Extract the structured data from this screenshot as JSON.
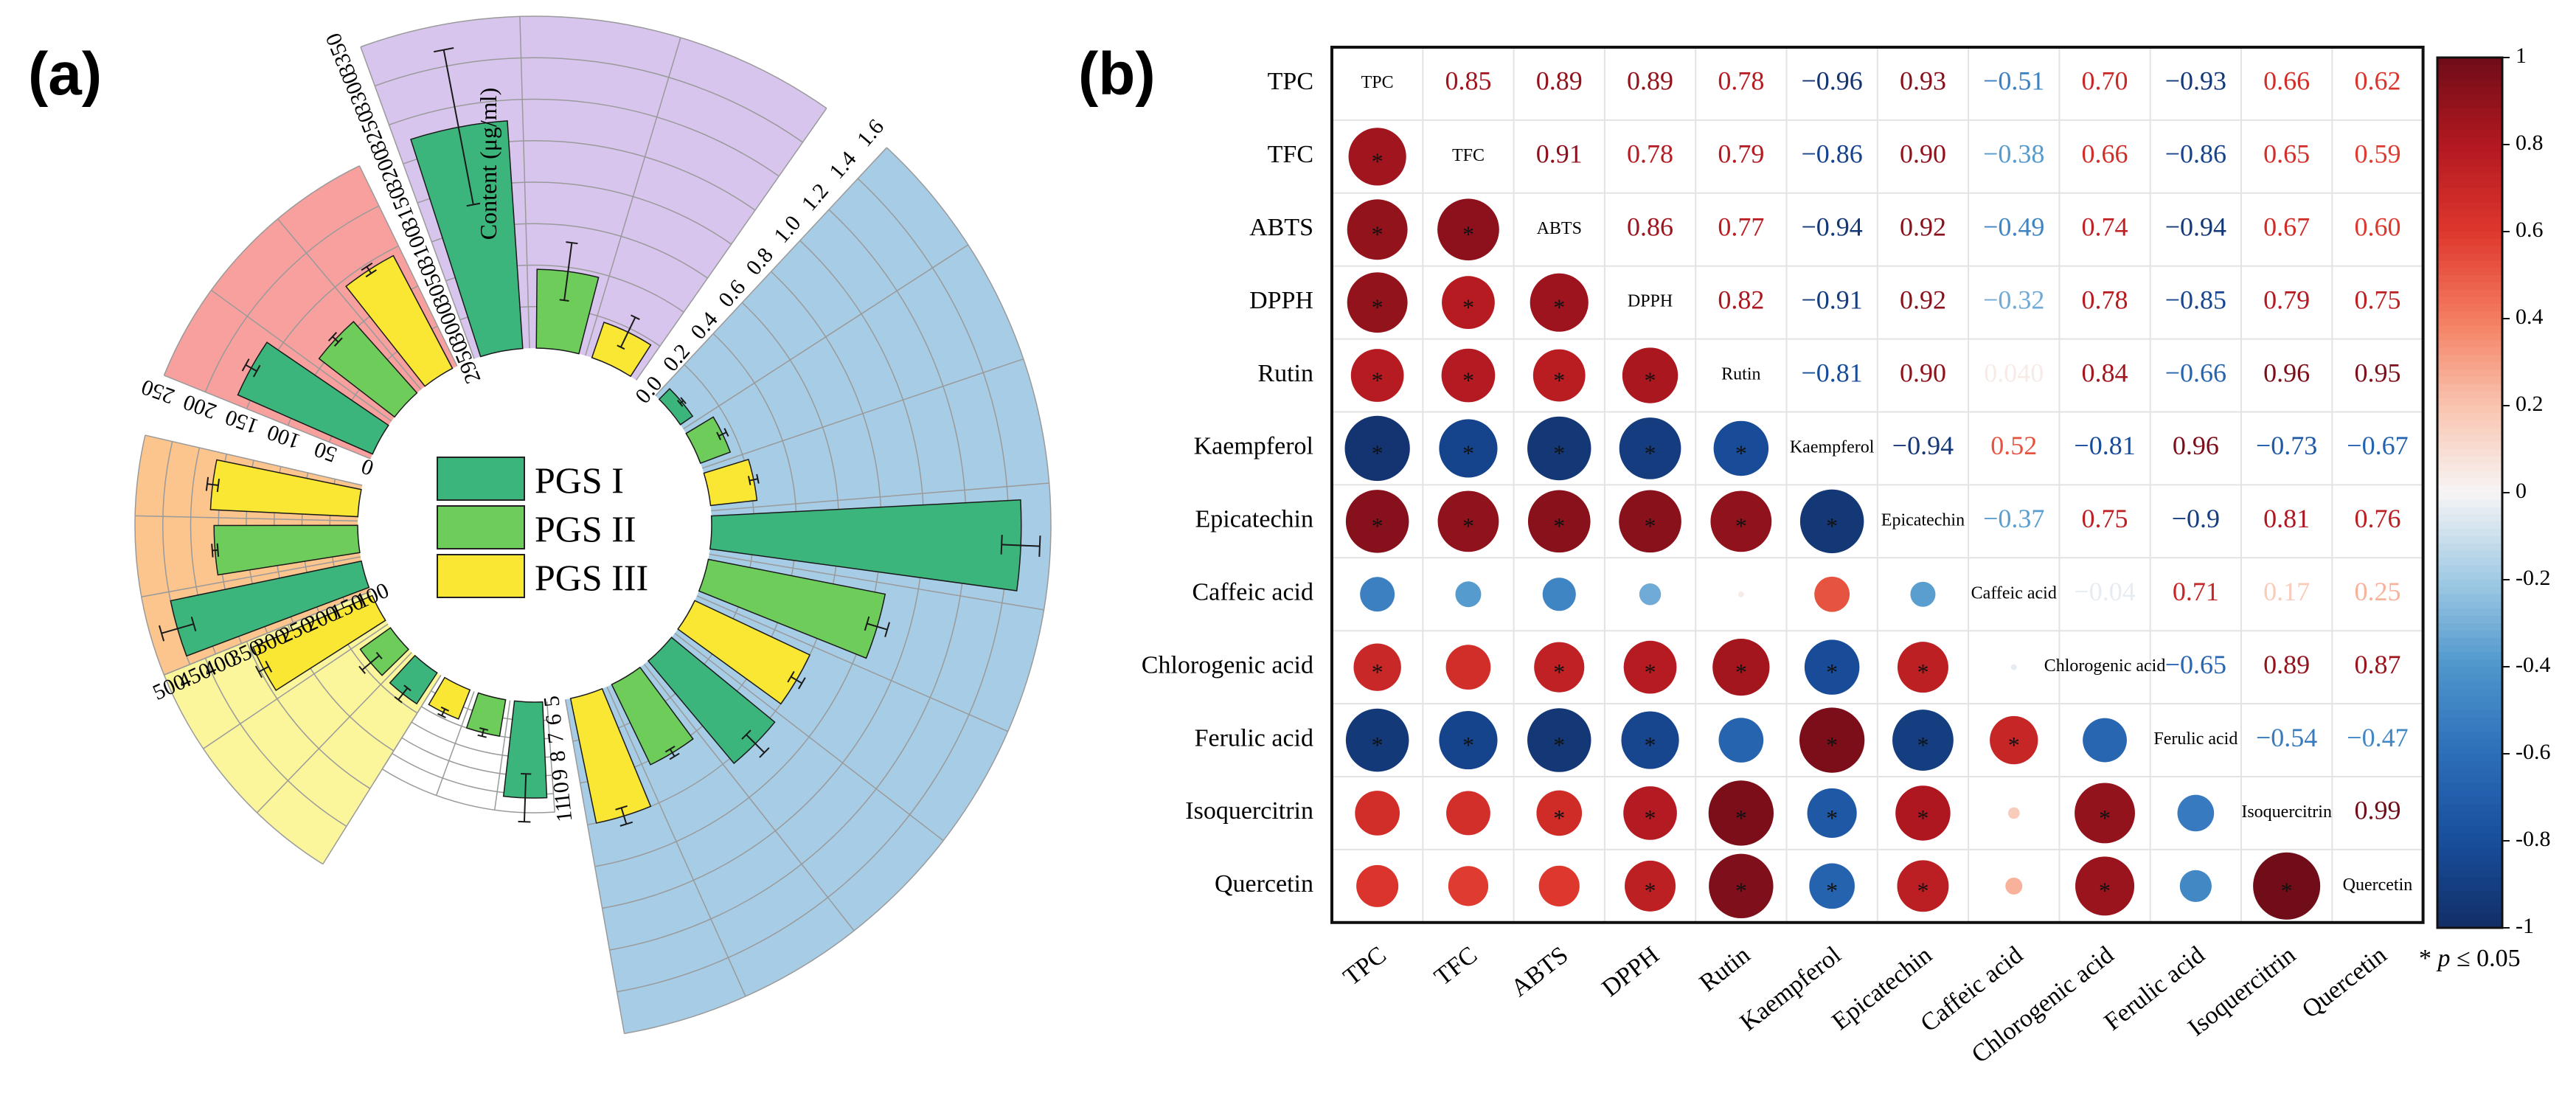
{
  "panel_a_label": "(a)",
  "panel_b_label": "(b)",
  "chart_data": [
    {
      "type": "bar",
      "subtype": "circular-grouped-bar",
      "panel": "(a)",
      "series_names": [
        "PGS I",
        "PGS II",
        "PGS III"
      ],
      "series_colors": [
        "#3bb57b",
        "#6dcc5a",
        "#f9e733"
      ],
      "legend": {
        "items": [
          {
            "label": "PGS I",
            "color": "#3bb57b"
          },
          {
            "label": "PGS II",
            "color": "#6dcc5a"
          },
          {
            "label": "PGS III",
            "color": "#f9e733"
          }
        ],
        "placement": "center"
      },
      "sectors": [
        {
          "name": "green-sector",
          "bg": "#ffffff",
          "range": [
            5,
            11
          ],
          "tick_labels": [
            "5",
            "6",
            "7",
            "8",
            "9",
            "10",
            "11"
          ],
          "values": [
            10.2,
            7.0,
            6.7
          ],
          "errors": [
            1.3,
            0.2,
            0.2
          ]
        },
        {
          "name": "yellow-sector",
          "bg": "#fbf69c",
          "range": [
            0,
            60
          ],
          "tick_labels": [],
          "values": [
            10,
            10,
            35
          ],
          "errors": [
            2,
            3,
            1.5
          ]
        },
        {
          "name": "orange-sector",
          "bg": "#fcc58d",
          "range": [
            100,
            500
          ],
          "tick_labels": [
            "100",
            "150",
            "200",
            "250",
            "300",
            "350",
            "400",
            "450",
            "500"
          ],
          "values": [
            450,
            358,
            365
          ],
          "errors": [
            30,
            5,
            10
          ]
        },
        {
          "name": "pink-sector",
          "bg": "#f7a09e",
          "range": [
            0,
            280
          ],
          "tick_labels": [
            "0",
            "50",
            "100",
            "150",
            "200",
            "250"
          ],
          "values": [
            185,
            120,
            160
          ],
          "errors": [
            8,
            5,
            5
          ]
        },
        {
          "name": "purple-sector",
          "bg": "#d8c5ee",
          "range": [
            2950,
            3350
          ],
          "tick_labels": [
            "2950",
            "3000",
            "3050",
            "3100",
            "3150",
            "3200",
            "3250",
            "3300",
            "3350"
          ],
          "axis_title": "Content (μg/ml)",
          "values": [
            3225,
            3045,
            2995
          ],
          "errors": [
            95,
            35,
            20
          ]
        },
        {
          "name": "blue-sector",
          "bg": "#a7cde6",
          "range": [
            0,
            1.6
          ],
          "tick_labels": [
            "0.0",
            "0.2",
            "0.4",
            "0.6",
            "0.8",
            "1.0",
            "1.2",
            "1.4",
            "1.6"
          ],
          "values": [
            0.07,
            0.15,
            0.22,
            1.46,
            0.85,
            0.6,
            0.63,
            0.42,
            0.6
          ],
          "errors": [
            0.01,
            0.02,
            0.02,
            0.09,
            0.05,
            0.03,
            0.06,
            0.02,
            0.04
          ]
        }
      ]
    },
    {
      "type": "heatmap",
      "subtype": "correlation-matrix",
      "panel": "(b)",
      "variables": [
        "TPC",
        "TFC",
        "ABTS",
        "DPPH",
        "Rutin",
        "Kaempferol",
        "Epicatechin",
        "Caffeic acid",
        "Chlorogenic acid",
        "Ferulic acid",
        "Isoquercitrin",
        "Quercetin"
      ],
      "matrix": [
        [
          1,
          0.85,
          0.89,
          0.89,
          0.78,
          -0.96,
          0.93,
          -0.51,
          0.7,
          -0.93,
          0.66,
          0.62
        ],
        [
          0.85,
          1,
          0.91,
          0.78,
          0.79,
          -0.86,
          0.9,
          -0.38,
          0.66,
          -0.86,
          0.65,
          0.59
        ],
        [
          0.89,
          0.91,
          1,
          0.86,
          0.77,
          -0.94,
          0.92,
          -0.49,
          0.74,
          -0.94,
          0.67,
          0.6
        ],
        [
          0.89,
          0.78,
          0.86,
          1,
          0.82,
          -0.91,
          0.92,
          -0.32,
          0.78,
          -0.85,
          0.79,
          0.75
        ],
        [
          0.78,
          0.79,
          0.77,
          0.82,
          1,
          -0.81,
          0.9,
          0.04,
          0.84,
          -0.66,
          0.96,
          0.95
        ],
        [
          -0.96,
          -0.86,
          -0.94,
          -0.91,
          -0.81,
          1,
          -0.94,
          0.52,
          -0.81,
          0.96,
          -0.73,
          -0.67
        ],
        [
          0.93,
          0.9,
          0.92,
          0.92,
          0.9,
          -0.94,
          1,
          -0.37,
          0.75,
          -0.9,
          0.81,
          0.76
        ],
        [
          -0.51,
          -0.38,
          -0.49,
          -0.32,
          0.04,
          0.52,
          -0.37,
          1,
          -0.04,
          0.71,
          0.17,
          0.25
        ],
        [
          0.7,
          0.66,
          0.74,
          0.78,
          0.84,
          -0.81,
          0.75,
          -0.04,
          1,
          -0.65,
          0.89,
          0.87
        ],
        [
          -0.93,
          -0.86,
          -0.94,
          -0.85,
          -0.66,
          0.96,
          -0.9,
          0.71,
          -0.65,
          1,
          -0.54,
          -0.47
        ],
        [
          0.66,
          0.65,
          0.67,
          0.79,
          0.96,
          -0.73,
          0.81,
          0.17,
          0.89,
          -0.54,
          1,
          0.99
        ],
        [
          0.62,
          0.59,
          0.6,
          0.75,
          0.95,
          -0.67,
          0.76,
          0.25,
          0.87,
          -0.47,
          0.99,
          1
        ]
      ],
      "upper_labels": [
        [
          "",
          "0.85",
          "0.89",
          "0.89",
          "0.78",
          "−0.96",
          "0.93",
          "−0.51",
          "0.70",
          "−0.93",
          "0.66",
          "0.62"
        ],
        [
          "",
          "",
          "0.91",
          "0.78",
          "0.79",
          "−0.86",
          "0.90",
          "−0.38",
          "0.66",
          "−0.86",
          "0.65",
          "0.59"
        ],
        [
          "",
          "",
          "",
          "0.86",
          "0.77",
          "−0.94",
          "0.92",
          "−0.49",
          "0.74",
          "−0.94",
          "0.67",
          "0.60"
        ],
        [
          "",
          "",
          "",
          "",
          "0.82",
          "−0.91",
          "0.92",
          "−0.32",
          "0.78",
          "−0.85",
          "0.79",
          "0.75"
        ],
        [
          "",
          "",
          "",
          "",
          "",
          "−0.81",
          "0.90",
          "0.040",
          "0.84",
          "−0.66",
          "0.96",
          "0.95"
        ],
        [
          "",
          "",
          "",
          "",
          "",
          "",
          "−0.94",
          "0.52",
          "−0.81",
          "0.96",
          "−0.73",
          "−0.67"
        ],
        [
          "",
          "",
          "",
          "",
          "",
          "",
          "",
          "−0.37",
          "0.75",
          "−0.9",
          "0.81",
          "0.76"
        ],
        [
          "",
          "",
          "",
          "",
          "",
          "",
          "",
          "",
          "−0.04",
          "0.71",
          "0.17",
          "0.25"
        ],
        [
          "",
          "",
          "",
          "",
          "",
          "",
          "",
          "",
          "",
          "−0.65",
          "0.89",
          "0.87"
        ],
        [
          "",
          "",
          "",
          "",
          "",
          "",
          "",
          "",
          "",
          "",
          "−0.54",
          "−0.47"
        ],
        [
          "",
          "",
          "",
          "",
          "",
          "",
          "",
          "",
          "",
          "",
          "",
          "0.99"
        ],
        [
          "",
          "",
          "",
          "",
          "",
          "",
          "",
          "",
          "",
          "",
          "",
          ""
        ]
      ],
      "significant": [
        [
          0,
          0,
          0,
          0,
          0,
          0,
          0,
          0,
          0,
          0,
          0,
          0
        ],
        [
          1,
          0,
          0,
          0,
          0,
          0,
          0,
          0,
          0,
          0,
          0,
          0
        ],
        [
          1,
          1,
          0,
          0,
          0,
          0,
          0,
          0,
          0,
          0,
          0,
          0
        ],
        [
          1,
          1,
          1,
          0,
          0,
          0,
          0,
          0,
          0,
          0,
          0,
          0
        ],
        [
          1,
          1,
          1,
          1,
          0,
          0,
          0,
          0,
          0,
          0,
          0,
          0
        ],
        [
          1,
          1,
          1,
          1,
          1,
          0,
          0,
          0,
          0,
          0,
          0,
          0
        ],
        [
          1,
          1,
          1,
          1,
          1,
          1,
          0,
          0,
          0,
          0,
          0,
          0
        ],
        [
          0,
          0,
          0,
          0,
          0,
          0,
          0,
          0,
          0,
          0,
          0,
          0
        ],
        [
          1,
          0,
          1,
          1,
          1,
          1,
          1,
          0,
          0,
          0,
          0,
          0
        ],
        [
          1,
          1,
          1,
          1,
          0,
          1,
          1,
          1,
          0,
          0,
          0,
          0
        ],
        [
          0,
          0,
          1,
          1,
          1,
          1,
          1,
          0,
          1,
          0,
          0,
          0
        ],
        [
          0,
          0,
          0,
          1,
          1,
          1,
          1,
          0,
          1,
          0,
          1,
          0
        ]
      ],
      "colorbar": {
        "range": [
          -1,
          1
        ],
        "tick_labels": [
          "1",
          "0.8",
          "0.6",
          "0.4",
          "0.2",
          "0",
          "-0.2",
          "-0.4",
          "-0.6",
          "-0.8",
          "-1"
        ]
      },
      "significance_star": "*",
      "significance_note_prefix": "* ",
      "significance_note_p": "p",
      "significance_note_rest": " ≤ 0.05"
    }
  ]
}
